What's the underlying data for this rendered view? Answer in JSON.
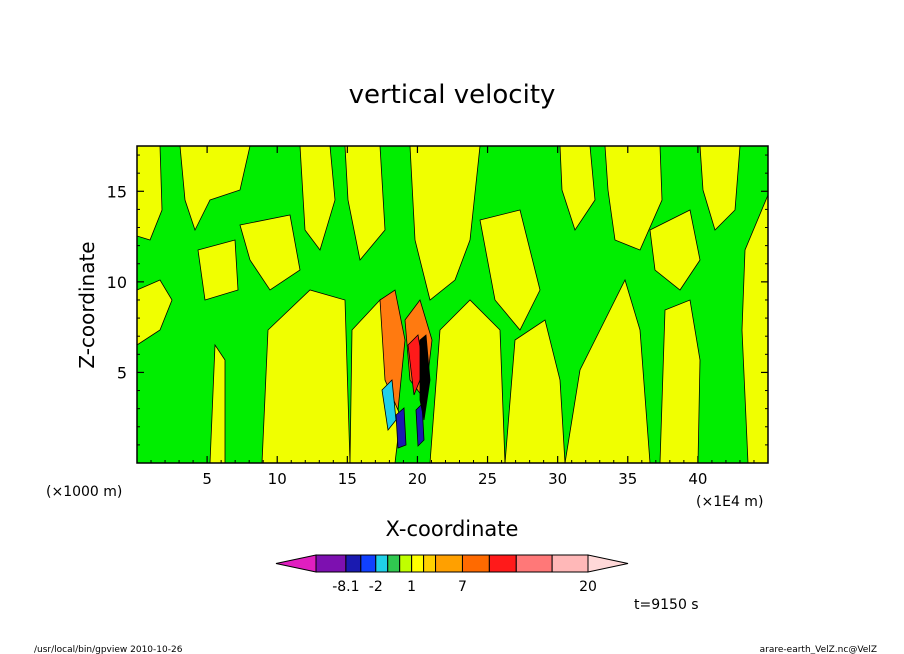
{
  "chart_data": {
    "type": "contour",
    "title": "vertical velocity",
    "xlabel": "X-coordinate",
    "ylabel": "Z-coordinate",
    "x_unit_left": "(×1000 m)",
    "x_unit_right": "(×1E4 m)",
    "xlim": [
      0,
      45
    ],
    "ylim": [
      0,
      17.5
    ],
    "x_ticks": [
      "5",
      "10",
      "15",
      "20",
      "25",
      "30",
      "35",
      "40"
    ],
    "y_ticks": [
      "5",
      "10",
      "15"
    ],
    "time_label": "t=9150 s",
    "colorbar": {
      "labels": [
        "-8.1",
        "-2",
        "1",
        "7",
        "20"
      ],
      "colors": [
        "#e01fc0",
        "#7d10b0",
        "#1a1ab0",
        "#1040ff",
        "#20d0e8",
        "#30c850",
        "#c0ff00",
        "#ffff00",
        "#ffd000",
        "#ffa000",
        "#ff6a00",
        "#ff1a1a",
        "#ff7878",
        "#ffb8b8",
        "#ffd8d8"
      ]
    }
  },
  "footer": {
    "left": "/usr/local/bin/gpview   2010-10-26",
    "right": "arare-earth_VelZ.nc@VelZ"
  }
}
